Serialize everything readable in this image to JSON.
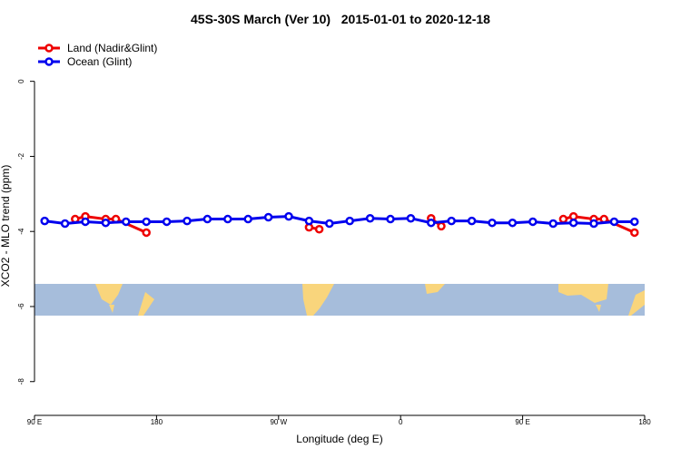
{
  "chart_data": {
    "type": "line",
    "title": "45S-30S March (Ver 10)   2015-01-01 to 2020-12-18",
    "xlabel": "Longitude (deg E)",
    "ylabel": "XCO2 - MLO trend (ppm)",
    "xlim": [
      90,
      540
    ],
    "xticks": [
      {
        "value": 90,
        "label": "90 E"
      },
      {
        "value": 180,
        "label": "180"
      },
      {
        "value": 270,
        "label": "90 W"
      },
      {
        "value": 360,
        "label": "0"
      },
      {
        "value": 450,
        "label": "90 E"
      },
      {
        "value": 540,
        "label": "180"
      }
    ],
    "ylim": [
      -8.9,
      1.2
    ],
    "yticks": [
      0,
      -2,
      -4,
      -6,
      -8
    ],
    "legend": "top-left",
    "series": [
      {
        "name": "Land (Nadir&Glint)",
        "color": "#ee0000",
        "x": [
          120,
          127.5,
          142.5,
          150,
          172.5,
          292.5,
          300,
          382.5,
          390,
          480,
          487.5,
          502.5,
          510,
          532.5
        ],
        "values": [
          -3.67,
          -3.6,
          -3.67,
          -3.67,
          -4.03,
          -3.89,
          -3.94,
          -3.65,
          -3.86,
          -3.67,
          -3.6,
          -3.67,
          -3.67,
          -4.03
        ],
        "breaks_before": [
          5,
          7,
          9
        ]
      },
      {
        "name": "Ocean (Glint)",
        "color": "#0000ee",
        "x": [
          97.5,
          112.5,
          127.5,
          142.5,
          157.5,
          172.5,
          187.5,
          202.5,
          217.5,
          232.5,
          247.5,
          262.5,
          277.5,
          292.5,
          307.5,
          322.5,
          337.5,
          352.5,
          367.5,
          382.5,
          397.5,
          412.5,
          427.5,
          442.5,
          457.5,
          472.5,
          487.5,
          502.5,
          517.5,
          532.5
        ],
        "values": [
          -3.72,
          -3.79,
          -3.74,
          -3.77,
          -3.74,
          -3.74,
          -3.74,
          -3.72,
          -3.67,
          -3.67,
          -3.67,
          -3.62,
          -3.6,
          -3.72,
          -3.79,
          -3.72,
          -3.65,
          -3.67,
          -3.65,
          -3.77,
          -3.72,
          -3.72,
          -3.77,
          -3.77,
          -3.74,
          -3.79,
          -3.77,
          -3.79,
          -3.74,
          -3.74
        ]
      }
    ]
  }
}
